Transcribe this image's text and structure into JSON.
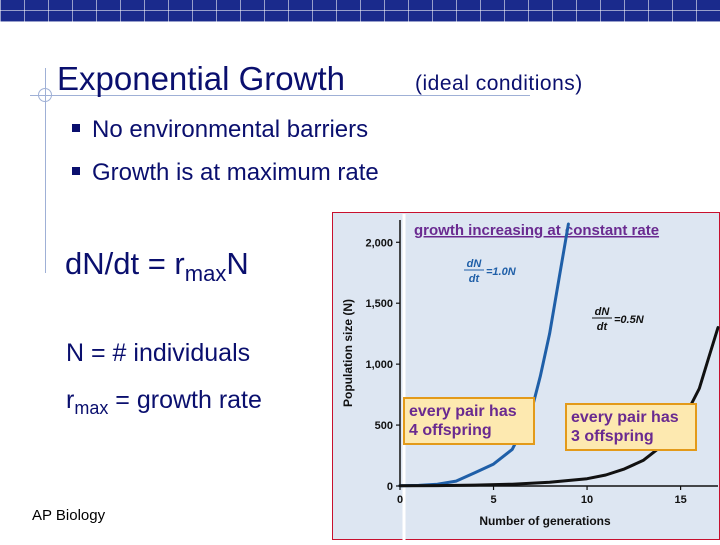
{
  "slide": {
    "title": "Exponential Growth",
    "subtitle": "(ideal conditions)",
    "bullets": [
      "No environmental barriers",
      "Growth is at maximum rate"
    ],
    "formula": {
      "lhs": "d",
      "N1": "N",
      "mid": "/dt = r",
      "sub": "max",
      "N2": "N"
    },
    "definitions": [
      {
        "lead": "N = # individuals",
        "sub": "",
        "rest": ""
      },
      {
        "lead": "r",
        "sub": "max",
        "rest": " = growth rate"
      }
    ],
    "footer": "AP Biology"
  },
  "colors": {
    "topbar": "#1a2a8c",
    "text": "#0a0f6e",
    "chart_bg": "#dde6f2",
    "chart_border": "#c8102e",
    "blue_curve": "#1f5fa8",
    "black_curve": "#111111",
    "callout": "#fde9b0",
    "callout_border": "#e39a1a",
    "header_text": "#6a2a90"
  },
  "chart_data": {
    "type": "line",
    "title": "growth increasing at constant rate",
    "xlabel": "Number of generations",
    "ylabel": "Population size (N)",
    "xlim": [
      0,
      17
    ],
    "ylim": [
      0,
      2150
    ],
    "x_ticks": [
      0,
      5,
      10,
      15
    ],
    "y_ticks": [
      0,
      500,
      1000,
      1500,
      2000
    ],
    "x_tick_labels": [
      "0",
      "5",
      "10",
      "15"
    ],
    "y_tick_labels": [
      "0",
      "500",
      "1,000",
      "1,500",
      "2,000"
    ],
    "grid": false,
    "series": [
      {
        "name": "dN/dt = 1.0N",
        "label_top": "dN",
        "label_bottom": "dt",
        "label_rhs": "=1.0N",
        "callout": [
          "every pair has",
          "4 offspring"
        ],
        "color": "#1f5fa8",
        "x": [
          0,
          1,
          2,
          3,
          4,
          5,
          6,
          7,
          7.5,
          8,
          8.5,
          9
        ],
        "y": [
          2,
          5,
          15,
          40,
          109,
          180,
          300,
          600,
          900,
          1250,
          1700,
          2150
        ]
      },
      {
        "name": "dN/dt = 0.5N",
        "label_top": "dN",
        "label_bottom": "dt",
        "label_rhs": "=0.5N",
        "callout": [
          "every pair has",
          "3 offspring"
        ],
        "color": "#111111",
        "x": [
          0,
          2,
          4,
          6,
          8,
          10,
          11,
          12,
          13,
          14,
          15,
          16,
          16.5,
          17
        ],
        "y": [
          2,
          3,
          7,
          15,
          30,
          60,
          90,
          140,
          210,
          330,
          500,
          800,
          1050,
          1300
        ]
      }
    ]
  }
}
